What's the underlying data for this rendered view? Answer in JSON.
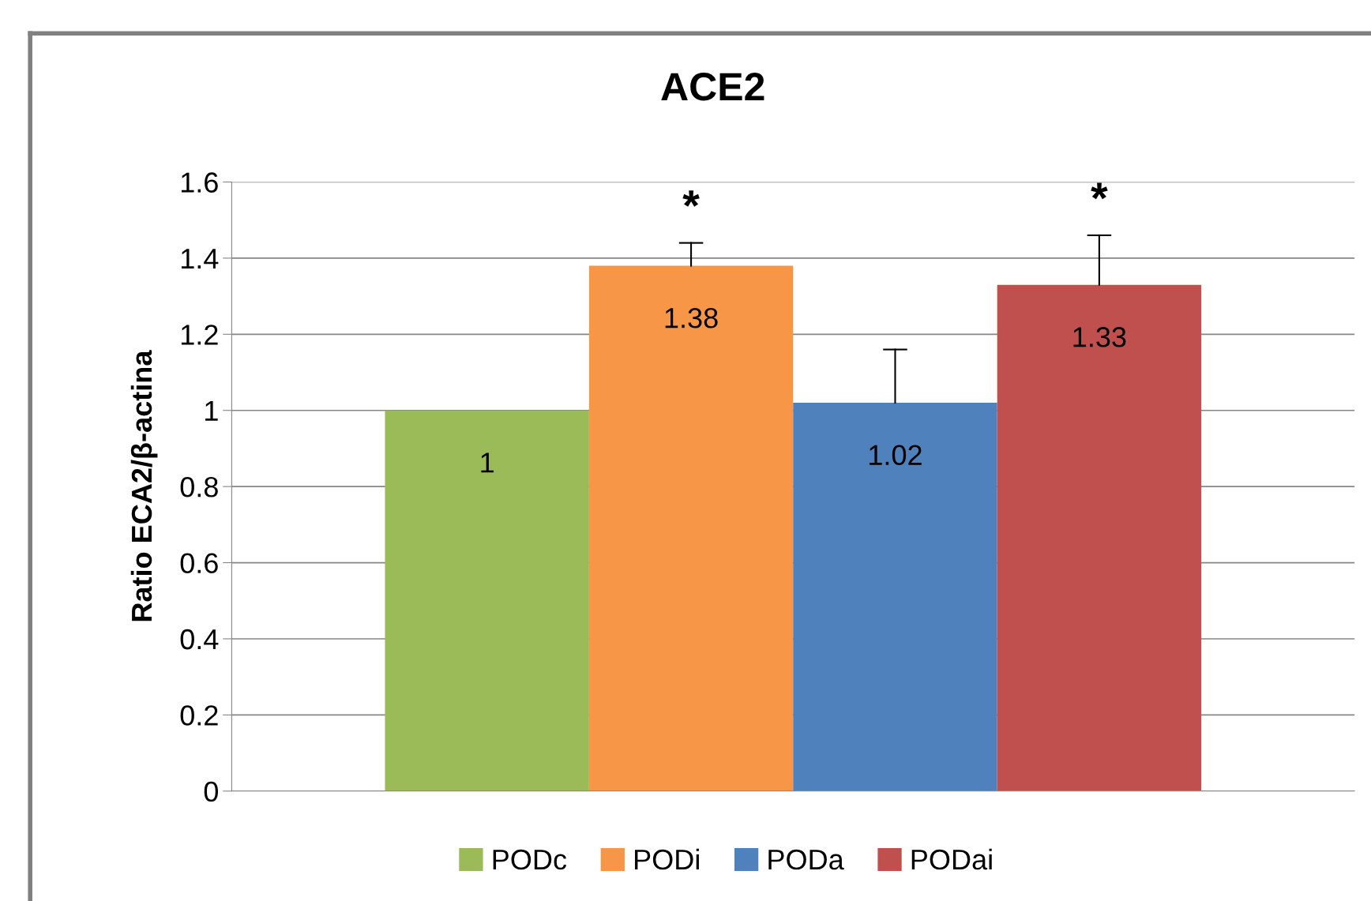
{
  "chart_data": {
    "type": "bar",
    "title": "ACE2",
    "ylabel": "Ratio ECA2/β-actina",
    "categories": [
      null
    ],
    "series": [
      {
        "name": "PODc",
        "color": "#9bbb59",
        "values": [
          1
        ],
        "errors": [
          null
        ]
      },
      {
        "name": "PODi",
        "color": "#f79646",
        "values": [
          1.38
        ],
        "errors": [
          [
            1.38,
            1.44
          ]
        ]
      },
      {
        "name": "PODa",
        "color": "#4f81bd",
        "values": [
          1.02
        ],
        "errors": [
          [
            1.02,
            1.16
          ]
        ]
      },
      {
        "name": "PODai",
        "color": "#c0504d",
        "values": [
          1.33
        ],
        "errors": [
          [
            1.33,
            1.46
          ]
        ]
      }
    ],
    "ylim": [
      0,
      1.6
    ],
    "yticks": [
      0,
      0.2,
      0.4,
      0.6,
      0.8,
      1,
      1.2,
      1.4,
      1.6
    ],
    "grid": "y",
    "legend": "bottom",
    "data_labels": true,
    "annotations": [
      "*",
      "*"
    ]
  }
}
